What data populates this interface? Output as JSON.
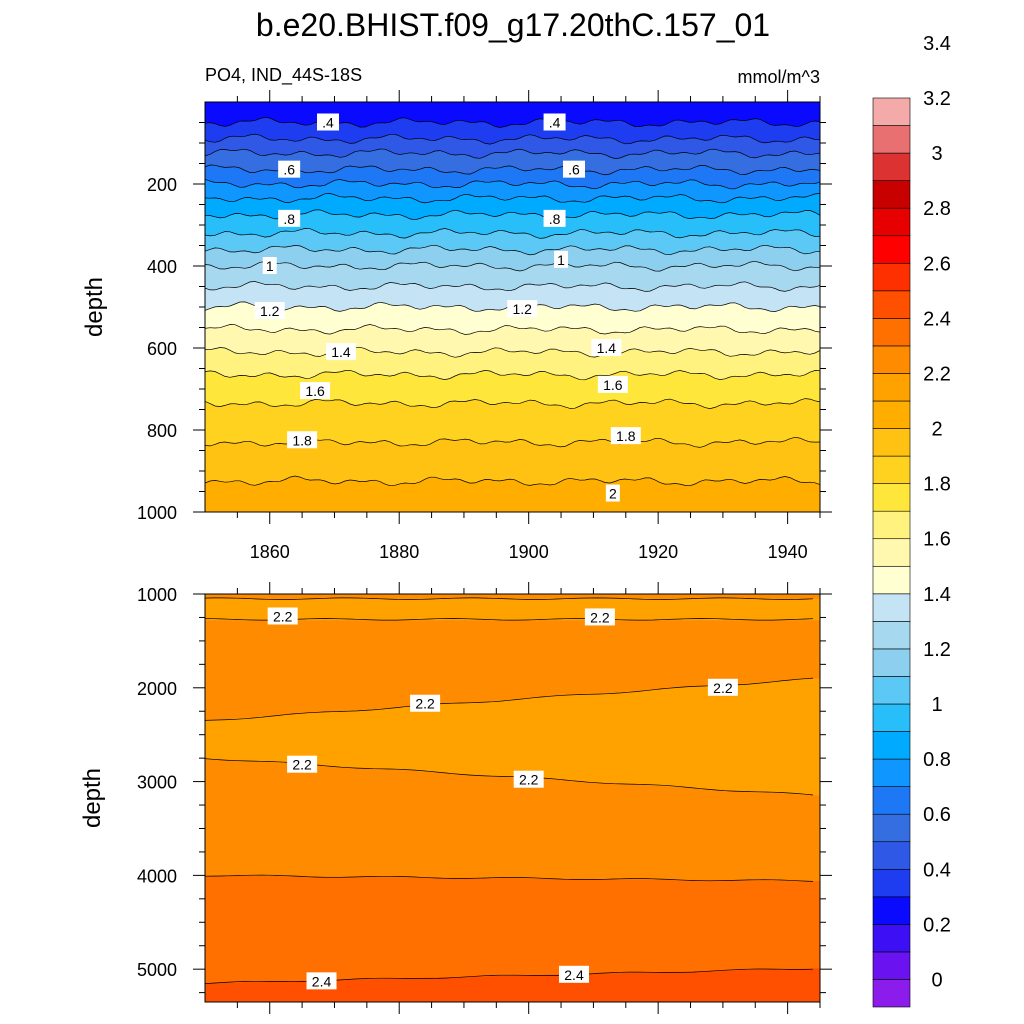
{
  "title": "b.e20.BHIST.f09_g17.20thC.157_01",
  "left_string": "PO4, IND_44S-18S",
  "right_string": "mmol/m^3",
  "chart_data": [
    {
      "type": "heatmap",
      "panel": "upper",
      "ylabel": "depth",
      "xlim": [
        1850,
        1945
      ],
      "ylim": [
        1000,
        0
      ],
      "x_ticks": [
        1860,
        1880,
        1900,
        1920,
        1940
      ],
      "y_ticks": [
        200,
        400,
        600,
        800,
        1000
      ],
      "contours": [
        {
          "level": 0.3,
          "depth": 50
        },
        {
          "level": 0.4,
          "depth": 90
        },
        {
          "level": 0.5,
          "depth": 125
        },
        {
          "level": 0.6,
          "depth": 165
        },
        {
          "level": 0.7,
          "depth": 200
        },
        {
          "level": 0.8,
          "depth": 235
        },
        {
          "level": 0.9,
          "depth": 275
        },
        {
          "level": 1.0,
          "depth": 320
        },
        {
          "level": 1.1,
          "depth": 360
        },
        {
          "level": 1.2,
          "depth": 400
        },
        {
          "level": 1.3,
          "depth": 450
        },
        {
          "level": 1.4,
          "depth": 500
        },
        {
          "level": 1.5,
          "depth": 555
        },
        {
          "level": 1.6,
          "depth": 610
        },
        {
          "level": 1.7,
          "depth": 665
        },
        {
          "level": 1.8,
          "depth": 735
        },
        {
          "level": 1.9,
          "depth": 830
        },
        {
          "level": 2.0,
          "depth": 925
        }
      ],
      "labels": [
        {
          "text": ".4",
          "x": 1869,
          "depth": 50
        },
        {
          "text": ".4",
          "x": 1904,
          "depth": 50
        },
        {
          "text": ".6",
          "x": 1863,
          "depth": 165
        },
        {
          "text": ".6",
          "x": 1907,
          "depth": 165
        },
        {
          "text": ".8",
          "x": 1863,
          "depth": 285
        },
        {
          "text": ".8",
          "x": 1904,
          "depth": 285
        },
        {
          "text": "1",
          "x": 1860,
          "depth": 400
        },
        {
          "text": "1",
          "x": 1905,
          "depth": 385
        },
        {
          "text": "1.2",
          "x": 1860,
          "depth": 510
        },
        {
          "text": "1.2",
          "x": 1899,
          "depth": 505
        },
        {
          "text": "1.4",
          "x": 1871,
          "depth": 610
        },
        {
          "text": "1.4",
          "x": 1912,
          "depth": 600
        },
        {
          "text": "1.6",
          "x": 1867,
          "depth": 705
        },
        {
          "text": "1.6",
          "x": 1913,
          "depth": 690
        },
        {
          "text": "1.8",
          "x": 1865,
          "depth": 825
        },
        {
          "text": "1.8",
          "x": 1915,
          "depth": 815
        },
        {
          "text": "2",
          "x": 1913,
          "depth": 955
        }
      ]
    },
    {
      "type": "heatmap",
      "panel": "lower",
      "ylabel": "depth",
      "xlim": [
        1850,
        1945
      ],
      "ylim": [
        5350,
        1000
      ],
      "y_ticks": [
        1000,
        2000,
        3000,
        4000,
        5000
      ],
      "bands": [
        {
          "from_depth": 1000,
          "to_depth": 1280,
          "left_depth": 1280,
          "right_depth": 1280,
          "value": 2.15
        },
        {
          "from_depth": 1000,
          "to_depth": 2350,
          "left_depth": 2350,
          "right_depth": 1900,
          "value": 2.25
        },
        {
          "from_depth": 1000,
          "to_depth": 2750,
          "left_depth": 2750,
          "right_depth": 3150,
          "value": 2.15
        },
        {
          "from_depth": 1000,
          "to_depth": 4000,
          "left_depth": 4000,
          "right_depth": 4060,
          "value": 2.25
        },
        {
          "from_depth": 1000,
          "to_depth": 5150,
          "left_depth": 5150,
          "right_depth": 4990,
          "value": 2.35
        },
        {
          "from_depth": 1000,
          "to_depth": 5350,
          "left_depth": 5350,
          "right_depth": 5350,
          "value": 2.45
        }
      ],
      "labels": [
        {
          "text": "2.2",
          "x": 1862,
          "depth": 1240
        },
        {
          "text": "2.2",
          "x": 1911,
          "depth": 1250
        },
        {
          "text": "2.2",
          "x": 1884,
          "depth": 2170
        },
        {
          "text": "2.2",
          "x": 1930,
          "depth": 2000
        },
        {
          "text": "2.2",
          "x": 1865,
          "depth": 2820
        },
        {
          "text": "2.2",
          "x": 1900,
          "depth": 2980
        },
        {
          "text": "2.4",
          "x": 1868,
          "depth": 5130
        },
        {
          "text": "2.4",
          "x": 1907,
          "depth": 5060
        }
      ]
    }
  ],
  "colorbar": {
    "labels": [
      "0",
      "0.2",
      "0.4",
      "0.6",
      "0.8",
      "1",
      "1.2",
      "1.4",
      "1.6",
      "1.8",
      "2",
      "2.2",
      "2.4",
      "2.6",
      "2.8",
      "3",
      "3.2",
      "3.4"
    ],
    "colors": [
      "#8C1CEB",
      "#6A12F0",
      "#3C0FF5",
      "#0A0AFF",
      "#1E3CF0",
      "#2F58E6",
      "#356EE0",
      "#1E78F5",
      "#0F96FF",
      "#00AAFF",
      "#28BEFA",
      "#5CC8F5",
      "#8CCFEE",
      "#A6D8F0",
      "#C4E4F5",
      "#FFFFD2",
      "#FFF8AE",
      "#FFF27E",
      "#FFE63A",
      "#FFD21F",
      "#FFC212",
      "#FFAE00",
      "#FFA200",
      "#FF8C00",
      "#FF7000",
      "#FF5000",
      "#FF3000",
      "#FF0000",
      "#E60000",
      "#C80000",
      "#DC3232",
      "#E87070",
      "#F5AAAA"
    ]
  }
}
